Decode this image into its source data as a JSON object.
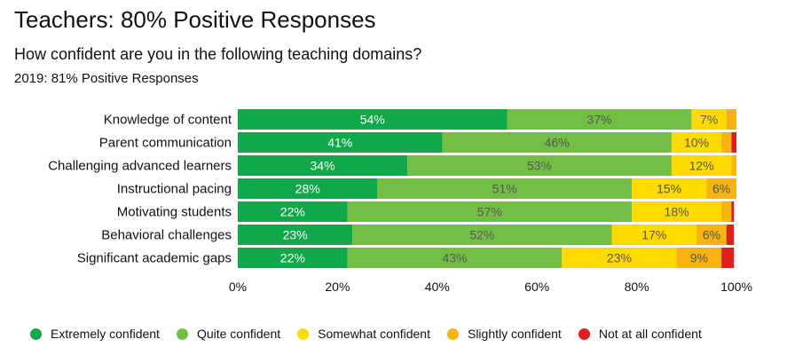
{
  "header": {
    "title": "Teachers: 80% Positive Responses",
    "question": "How confident are you in the following teaching domains?",
    "prior_year": "2019: 81% Positive Responses"
  },
  "colors": {
    "Extremely confident": "#10a84a",
    "Quite confident": "#73bf45",
    "Somewhat confident": "#ffda00",
    "Slightly confident": "#f7b30f",
    "Not at all confident": "#e31d1d",
    "dark_label": "#ffffff",
    "light_label": "#555555"
  },
  "chart_data": {
    "type": "bar",
    "orientation": "horizontal",
    "stacked": true,
    "title": "Teachers: 80% Positive Responses",
    "subtitle": "How confident are you in the following teaching domains?",
    "xlim": [
      0,
      100
    ],
    "x_ticks": [
      "0%",
      "20%",
      "40%",
      "60%",
      "80%",
      "100%"
    ],
    "legend_position": "bottom",
    "categories": [
      "Knowledge of content",
      "Parent communication",
      "Challenging advanced learners",
      "Instructional pacing",
      "Motivating students",
      "Behavioral challenges",
      "Significant academic gaps"
    ],
    "series": [
      {
        "name": "Extremely confident",
        "values": [
          54,
          41,
          34,
          28,
          22,
          23,
          22
        ],
        "labels": [
          "54%",
          "41%",
          "34%",
          "28%",
          "22%",
          "23%",
          "22%"
        ]
      },
      {
        "name": "Quite confident",
        "values": [
          37,
          46,
          53,
          51,
          57,
          52,
          43
        ],
        "labels": [
          "37%",
          "46%",
          "53%",
          "51%",
          "57%",
          "52%",
          "43%"
        ]
      },
      {
        "name": "Somewhat confident",
        "values": [
          7,
          10,
          12,
          15,
          18,
          17,
          23
        ],
        "labels": [
          "7%",
          "10%",
          "12%",
          "15%",
          "18%",
          "17%",
          "23%"
        ]
      },
      {
        "name": "Slightly confident",
        "values": [
          2,
          2,
          1,
          6,
          2,
          6,
          9
        ],
        "labels": [
          "",
          "",
          "",
          "6%",
          "",
          "6%",
          "9%"
        ]
      },
      {
        "name": "Not at all confident",
        "values": [
          0,
          1,
          0.5,
          1,
          0.5,
          1.5,
          2.5
        ],
        "labels": [
          "",
          "",
          "",
          "",
          "",
          "",
          ""
        ]
      }
    ]
  }
}
